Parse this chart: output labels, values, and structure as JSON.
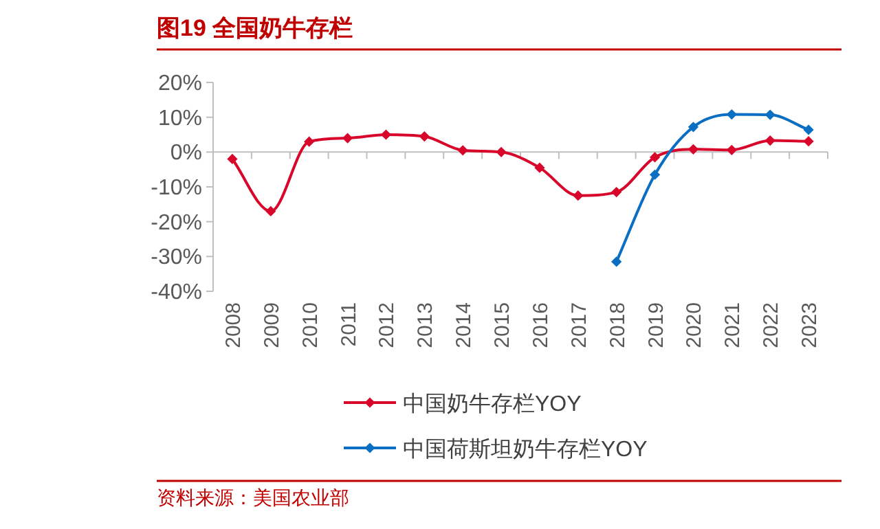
{
  "chart_data": {
    "type": "line",
    "title": "图19  全国奶牛存栏",
    "categories": [
      "2008",
      "2009",
      "2010",
      "2011",
      "2012",
      "2013",
      "2014",
      "2015",
      "2016",
      "2017",
      "2018",
      "2019",
      "2020",
      "2021",
      "2022",
      "2023"
    ],
    "series": [
      {
        "name": "中国奶牛存栏YOY",
        "color": "#d7062a",
        "values": [
          -2,
          -17,
          3,
          4,
          5,
          4.5,
          0.5,
          0,
          -4.5,
          -12.5,
          -11.5,
          -1.5,
          0.8,
          0.6,
          3.3,
          3.1
        ]
      },
      {
        "name": "中国荷斯坦奶牛存栏YOY",
        "color": "#0a6fc2",
        "values": [
          null,
          null,
          null,
          null,
          null,
          null,
          null,
          null,
          null,
          null,
          -31.5,
          -6.5,
          7.2,
          10.8,
          10.7,
          6.4
        ]
      }
    ],
    "ylim": [
      -40,
      20
    ],
    "yticks": [
      {
        "value": -40,
        "label": "-40%"
      },
      {
        "value": -30,
        "label": "-30%"
      },
      {
        "value": -20,
        "label": "-20%"
      },
      {
        "value": -10,
        "label": "-10%"
      },
      {
        "value": 0,
        "label": "0%"
      },
      {
        "value": 10,
        "label": "10%"
      },
      {
        "value": 20,
        "label": "20%"
      }
    ],
    "legend": "bottom",
    "marker": "diamond",
    "line_style": "solid",
    "annotations": [
      "资料来源：美国农业部"
    ]
  }
}
